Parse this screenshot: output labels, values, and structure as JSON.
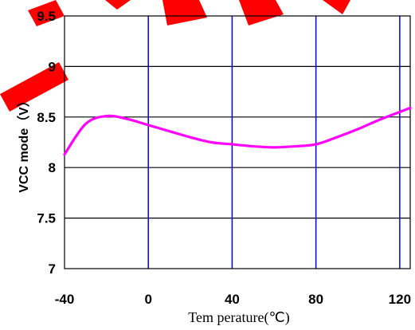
{
  "chart_data": {
    "type": "line",
    "xlabel": "Tem perature(℃)",
    "ylabel": "VCC mode（V）",
    "xlim": [
      -40,
      125
    ],
    "ylim": [
      7,
      9.5
    ],
    "x_ticks": [
      -40,
      0,
      40,
      80,
      120
    ],
    "y_ticks": [
      7,
      7.5,
      8,
      8.5,
      9,
      9.5
    ],
    "x_tick_labels": [
      "-40",
      "0",
      "40",
      "80",
      "120"
    ],
    "y_tick_labels": [
      "7",
      "7.5",
      "8",
      "8.5",
      "9",
      "9.5"
    ],
    "vertical_gridlines_at": [
      0,
      40,
      80,
      120
    ],
    "horizontal_gridlines_at": [
      7.5,
      8,
      8.5,
      9
    ],
    "legend": "none",
    "series": [
      {
        "x": [
          -40,
          -30,
          -20,
          -10,
          0,
          10,
          20,
          30,
          40,
          50,
          60,
          70,
          80,
          90,
          100,
          110,
          120,
          125
        ],
        "values": [
          8.13,
          8.43,
          8.51,
          8.48,
          8.42,
          8.36,
          8.3,
          8.25,
          8.23,
          8.21,
          8.2,
          8.21,
          8.23,
          8.3,
          8.38,
          8.47,
          8.55,
          8.59
        ]
      }
    ],
    "colors": {
      "line": "#ff00ff",
      "vertical_grid": "#0000ee",
      "horizontal_grid": "#000000",
      "watermark": "#ff0000"
    }
  }
}
